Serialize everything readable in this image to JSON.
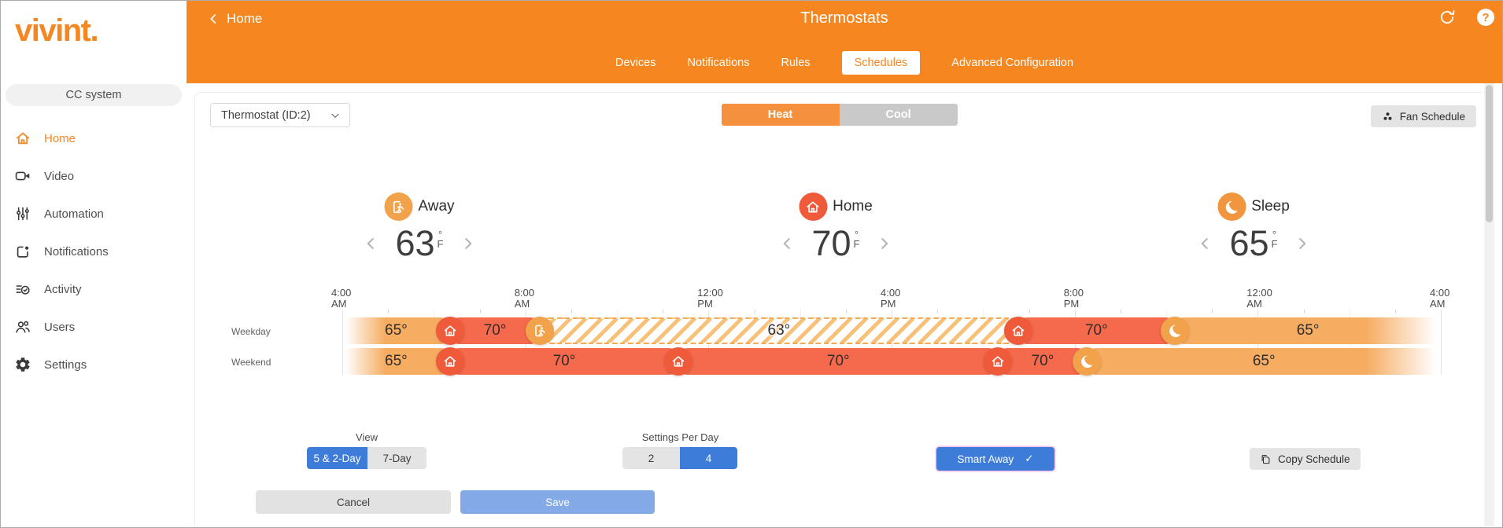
{
  "brand": {
    "logo_text": "vivint."
  },
  "sidebar": {
    "system_button": "CC system",
    "items": [
      {
        "label": "Home",
        "icon": "home-icon",
        "active": true
      },
      {
        "label": "Video",
        "icon": "video-icon",
        "active": false
      },
      {
        "label": "Automation",
        "icon": "automation-icon",
        "active": false
      },
      {
        "label": "Notifications",
        "icon": "notifications-icon",
        "active": false
      },
      {
        "label": "Activity",
        "icon": "activity-icon",
        "active": false
      },
      {
        "label": "Users",
        "icon": "users-icon",
        "active": false
      },
      {
        "label": "Settings",
        "icon": "settings-icon",
        "active": false
      }
    ]
  },
  "header": {
    "back_label": "Home",
    "title": "Thermostats",
    "help_glyph": "?",
    "tabs": [
      {
        "label": "Devices",
        "active": false
      },
      {
        "label": "Notifications",
        "active": false
      },
      {
        "label": "Rules",
        "active": false
      },
      {
        "label": "Schedules",
        "active": true
      },
      {
        "label": "Advanced Configuration",
        "active": false
      }
    ]
  },
  "toolbar": {
    "device_selector_value": "Thermostat (ID:2)",
    "mode_options": [
      {
        "label": "Heat",
        "active": true
      },
      {
        "label": "Cool",
        "active": false
      }
    ],
    "fan_schedule_label": "Fan Schedule"
  },
  "presets": [
    {
      "name": "Away",
      "icon": "away-icon",
      "temp": "63",
      "degree": "°",
      "unit": "F",
      "circle_color": "#f2a24b"
    },
    {
      "name": "Home",
      "icon": "home-icon",
      "temp": "70",
      "degree": "°",
      "unit": "F",
      "circle_color": "#ee5a3a"
    },
    {
      "name": "Sleep",
      "icon": "moon-icon",
      "temp": "65",
      "degree": "°",
      "unit": "F",
      "circle_color": "#f2953f"
    }
  ],
  "schedule": {
    "time_labels": [
      {
        "time": "4:00",
        "meridiem": "AM",
        "pct": 0
      },
      {
        "time": "8:00",
        "meridiem": "AM",
        "pct": 16.67
      },
      {
        "time": "12:00",
        "meridiem": "PM",
        "pct": 33.33
      },
      {
        "time": "4:00",
        "meridiem": "PM",
        "pct": 50
      },
      {
        "time": "8:00",
        "meridiem": "PM",
        "pct": 66.67
      },
      {
        "time": "12:00",
        "meridiem": "AM",
        "pct": 83.33
      },
      {
        "time": "4:00",
        "meridiem": "AM",
        "pct": 100
      }
    ],
    "rows": [
      {
        "label": "Weekday",
        "segments": [
          {
            "temp": "65°",
            "kind": "sleep",
            "start": 0,
            "end": 9.8,
            "fade": "in"
          },
          {
            "temp": "70°",
            "kind": "home",
            "start": 9.8,
            "end": 18.0
          },
          {
            "temp": "63°",
            "kind": "away",
            "start": 18.0,
            "end": 61.5
          },
          {
            "temp": "70°",
            "kind": "home",
            "start": 61.5,
            "end": 75.8
          },
          {
            "temp": "65°",
            "kind": "sleep",
            "start": 75.8,
            "end": 100,
            "fade": "out"
          }
        ],
        "markers": [
          {
            "icon": "home-icon",
            "pct": 9.8
          },
          {
            "icon": "away-icon",
            "pct": 18.0
          },
          {
            "icon": "home-icon",
            "pct": 61.5
          },
          {
            "icon": "moon-icon",
            "pct": 75.8
          }
        ]
      },
      {
        "label": "Weekend",
        "segments": [
          {
            "temp": "65°",
            "kind": "sleep",
            "start": 0,
            "end": 9.8,
            "fade": "in"
          },
          {
            "temp": "70°",
            "kind": "home",
            "start": 9.8,
            "end": 30.6
          },
          {
            "temp": "70°",
            "kind": "home",
            "start": 30.6,
            "end": 59.7
          },
          {
            "temp": "70°",
            "kind": "home",
            "start": 59.7,
            "end": 67.8
          },
          {
            "temp": "65°",
            "kind": "sleep",
            "start": 67.8,
            "end": 100,
            "fade": "out"
          }
        ],
        "markers": [
          {
            "icon": "home-icon",
            "pct": 9.8
          },
          {
            "icon": "home-icon",
            "pct": 30.6
          },
          {
            "icon": "home-icon",
            "pct": 59.7
          },
          {
            "icon": "moon-icon",
            "pct": 67.8
          }
        ]
      }
    ]
  },
  "controls": {
    "view_label": "View",
    "view_options": [
      {
        "label": "5 & 2-Day",
        "active": true
      },
      {
        "label": "7-Day",
        "active": false
      }
    ],
    "settings_per_day_label": "Settings Per Day",
    "settings_options": [
      {
        "label": "2",
        "active": false
      },
      {
        "label": "4",
        "active": true
      }
    ],
    "smart_away_label": "Smart Away",
    "smart_away_check": "✓",
    "copy_schedule_label": "Copy Schedule"
  },
  "footer": {
    "cancel_label": "Cancel",
    "save_label": "Save"
  },
  "colors": {
    "brand_orange": "#f6861f",
    "heat_orange": "#f5913e",
    "segment_home": "#f5694c",
    "segment_sleep": "#f6ac61",
    "marker_home": "#ee5a3a",
    "marker_warm": "#f2a24b",
    "accent_blue": "#3d7cd8",
    "save_disabled": "#83a9e6"
  }
}
